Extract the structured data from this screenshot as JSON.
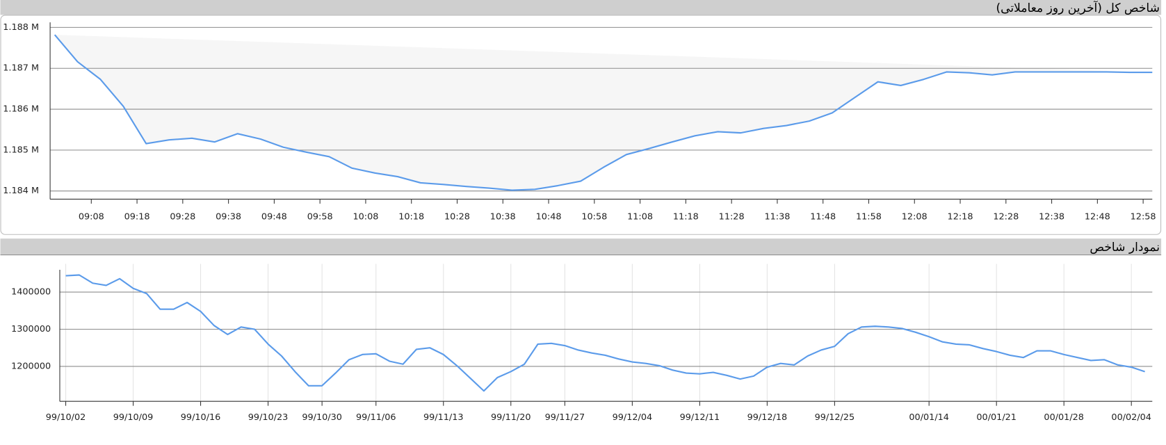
{
  "chart_data": [
    {
      "type": "line",
      "title": "شاخص کل (آخرین روز معاملاتی)",
      "x": [
        "09:00",
        "09:05",
        "09:10",
        "09:15",
        "09:20",
        "09:25",
        "09:30",
        "09:35",
        "09:40",
        "09:45",
        "09:50",
        "09:55",
        "10:00",
        "10:05",
        "10:10",
        "10:15",
        "10:20",
        "10:25",
        "10:30",
        "10:35",
        "10:40",
        "10:45",
        "10:50",
        "10:55",
        "11:00",
        "11:05",
        "11:10",
        "11:15",
        "11:20",
        "11:25",
        "11:30",
        "11:35",
        "11:40",
        "11:45",
        "11:50",
        "11:55",
        "12:00",
        "12:05",
        "12:10",
        "12:15",
        "12:20",
        "12:25",
        "12:30",
        "12:35",
        "12:40",
        "12:45",
        "12:50",
        "12:55",
        "13:00"
      ],
      "values": [
        1187820,
        1187160,
        1186730,
        1186070,
        1185160,
        1185250,
        1185290,
        1185200,
        1185400,
        1185270,
        1185070,
        1184950,
        1184840,
        1184560,
        1184440,
        1184350,
        1184200,
        1184160,
        1184110,
        1184070,
        1184020,
        1184040,
        1184130,
        1184240,
        1184580,
        1184890,
        1185040,
        1185200,
        1185350,
        1185450,
        1185420,
        1185530,
        1185600,
        1185710,
        1185910,
        1186290,
        1186670,
        1186580,
        1186730,
        1186910,
        1186890,
        1186840,
        1186910,
        1186910,
        1186910,
        1186910,
        1186910,
        1186900,
        1186900
      ],
      "color": "#5b9bea",
      "area_color": "#f6f6f6",
      "xlim": [
        "08:59",
        "13:00"
      ],
      "xticks": [
        "09:08",
        "09:18",
        "09:28",
        "09:38",
        "09:48",
        "09:58",
        "10:08",
        "10:18",
        "10:28",
        "10:38",
        "10:48",
        "10:58",
        "11:08",
        "11:18",
        "11:28",
        "11:38",
        "11:48",
        "11:58",
        "12:08",
        "12:18",
        "12:28",
        "12:38",
        "12:48",
        "12:58"
      ],
      "ylim": [
        1183800,
        1188270
      ],
      "yticks": [
        {
          "value": 1184000,
          "label": "1.184 M"
        },
        {
          "value": 1185000,
          "label": "1.185 M"
        },
        {
          "value": 1186000,
          "label": "1.186 M"
        },
        {
          "value": 1187000,
          "label": "1.187 M"
        },
        {
          "value": 1188000,
          "label": "1.188 M"
        }
      ],
      "grid": true
    },
    {
      "type": "line",
      "title": "نمودار شاخص",
      "categories": [
        "99/10/02",
        null,
        null,
        null,
        null,
        "99/10/09",
        null,
        null,
        null,
        null,
        "99/10/16",
        null,
        null,
        null,
        null,
        "99/10/23",
        null,
        null,
        null,
        "99/10/30",
        null,
        null,
        null,
        "99/11/06",
        null,
        null,
        null,
        null,
        "99/11/13",
        null,
        null,
        null,
        null,
        "99/11/20",
        null,
        null,
        null,
        "99/11/27",
        null,
        null,
        null,
        null,
        "99/12/04",
        null,
        null,
        null,
        null,
        "99/12/11",
        null,
        null,
        null,
        null,
        "99/12/18",
        null,
        null,
        null,
        null,
        "99/12/25",
        null,
        null,
        null,
        null,
        null,
        null,
        "00/01/14",
        null,
        null,
        null,
        null,
        "00/01/21",
        null,
        null,
        null,
        null,
        "00/01/28",
        null,
        null,
        null,
        null,
        "00/02/04",
        null
      ],
      "values": [
        1444000,
        1446000,
        1424000,
        1418000,
        1436000,
        1410000,
        1396000,
        1354000,
        1354000,
        1372000,
        1348000,
        1310000,
        1286000,
        1306000,
        1300000,
        1260000,
        1228000,
        1186000,
        1148000,
        1148000,
        1182000,
        1218000,
        1232000,
        1234000,
        1214000,
        1206000,
        1246000,
        1250000,
        1232000,
        1202000,
        1168000,
        1134000,
        1170000,
        1186000,
        1206000,
        1260000,
        1262000,
        1256000,
        1244000,
        1236000,
        1230000,
        1220000,
        1212000,
        1208000,
        1202000,
        1190000,
        1182000,
        1180000,
        1184000,
        1176000,
        1166000,
        1174000,
        1198000,
        1208000,
        1204000,
        1228000,
        1244000,
        1254000,
        1288000,
        1306000,
        1308000,
        1306000,
        1302000,
        1292000,
        1280000,
        1266000,
        1260000,
        1258000,
        1248000,
        1240000,
        1230000,
        1224000,
        1242000,
        1242000,
        1232000,
        1224000,
        1216000,
        1218000,
        1204000,
        1198000,
        1186000
      ],
      "color": "#5b9bea",
      "ylim": [
        1106000,
        1476000
      ],
      "yticks": [
        1200000,
        1300000,
        1400000
      ],
      "grid": true
    }
  ]
}
